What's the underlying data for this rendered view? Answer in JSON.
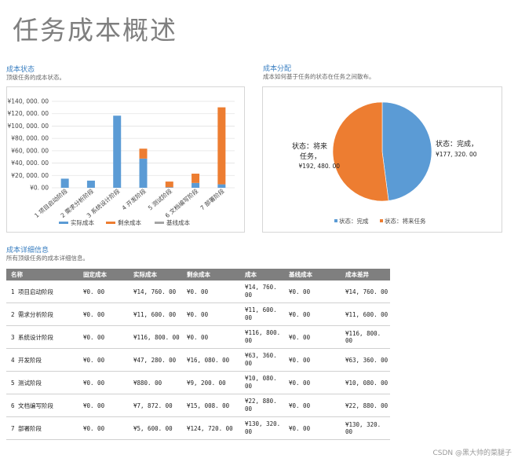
{
  "page": {
    "title": "任务成本概述"
  },
  "cost_status": {
    "heading": "成本状态",
    "description": "顶级任务的成本状态。",
    "legend": {
      "actual": "实际成本",
      "remaining": "剩余成本",
      "baseline": "基线成本"
    }
  },
  "cost_distribution": {
    "heading": "成本分配",
    "description": "成本如何基于任务的状态在任务之间散布。",
    "label_complete": "状态：完成，",
    "value_complete": "¥177, 320. 00",
    "label_future_line1": "状态：将来",
    "label_future_line2": "任务，",
    "value_future": "¥192, 480. 00",
    "legend": {
      "complete": "状态：完成",
      "future": "状态：将来任务"
    }
  },
  "cost_detail": {
    "heading": "成本详细信息",
    "description": "所有顶级任务的成本详细信息。",
    "columns": [
      "名称",
      "固定成本",
      "实际成本",
      "剩余成本",
      "成本",
      "基线成本",
      "成本差异"
    ],
    "rows": [
      [
        "1  项目启动阶段",
        "¥0. 00",
        "¥14, 760. 00",
        "¥0. 00",
        "¥14, 760. 00",
        "¥0. 00",
        "¥14, 760. 00"
      ],
      [
        "2  需求分析阶段",
        "¥0. 00",
        "¥11, 600. 00",
        "¥0. 00",
        "¥11, 600. 00",
        "¥0. 00",
        "¥11, 600. 00"
      ],
      [
        "3  系统设计阶段",
        "¥0. 00",
        "¥116, 800. 00",
        "¥0. 00",
        "¥116, 800. 00",
        "¥0. 00",
        "¥116, 800. 00"
      ],
      [
        "4  开发阶段",
        "¥0. 00",
        "¥47, 280. 00",
        "¥16, 080. 00",
        "¥63, 360. 00",
        "¥0. 00",
        "¥63, 360. 00"
      ],
      [
        "5  测试阶段",
        "¥0. 00",
        "¥880. 00",
        "¥9, 200. 00",
        "¥10, 080. 00",
        "¥0. 00",
        "¥10, 080. 00"
      ],
      [
        "6  文档编写阶段",
        "¥0. 00",
        "¥7, 872. 00",
        "¥15, 008. 00",
        "¥22, 880. 00",
        "¥0. 00",
        "¥22, 880. 00"
      ],
      [
        "7  部署阶段",
        "¥0. 00",
        "¥5, 600. 00",
        "¥124, 720. 00",
        "¥130, 320. 00",
        "¥0. 00",
        "¥130, 320. 00"
      ]
    ]
  },
  "watermark": "CSDN @黑大帅的菜腿子",
  "colors": {
    "actual": "#5b9bd5",
    "remaining": "#ed7d31",
    "baseline": "#a5a5a5",
    "header": "#7f7f7f"
  },
  "chart_data": [
    {
      "type": "bar",
      "stacked": true,
      "categories": [
        "1 项目启动阶段",
        "2 需求分析阶段",
        "3 系统设计阶段",
        "4 开发阶段",
        "5 测试阶段",
        "6 文档编写阶段",
        "7 部署阶段"
      ],
      "series": [
        {
          "name": "实际成本",
          "values": [
            14760,
            11600,
            116800,
            47280,
            880,
            7872,
            5600
          ]
        },
        {
          "name": "剩余成本",
          "values": [
            0,
            0,
            0,
            16080,
            9200,
            15008,
            124720
          ]
        },
        {
          "name": "基线成本",
          "values": [
            0,
            0,
            0,
            0,
            0,
            0,
            0
          ]
        }
      ],
      "ylim": [
        0,
        140000
      ],
      "yticks": [
        "¥0. 00",
        "¥20, 000. 00",
        "¥40, 000. 00",
        "¥60, 000. 00",
        "¥80, 000. 00",
        "¥100, 000. 00",
        "¥120, 000. 00",
        "¥140, 000. 00"
      ],
      "grid": true,
      "legend": "bottom"
    },
    {
      "type": "pie",
      "labels": [
        "状态：完成",
        "状态：将来任务"
      ],
      "values": [
        177320,
        192480
      ],
      "legend": "bottom"
    }
  ]
}
